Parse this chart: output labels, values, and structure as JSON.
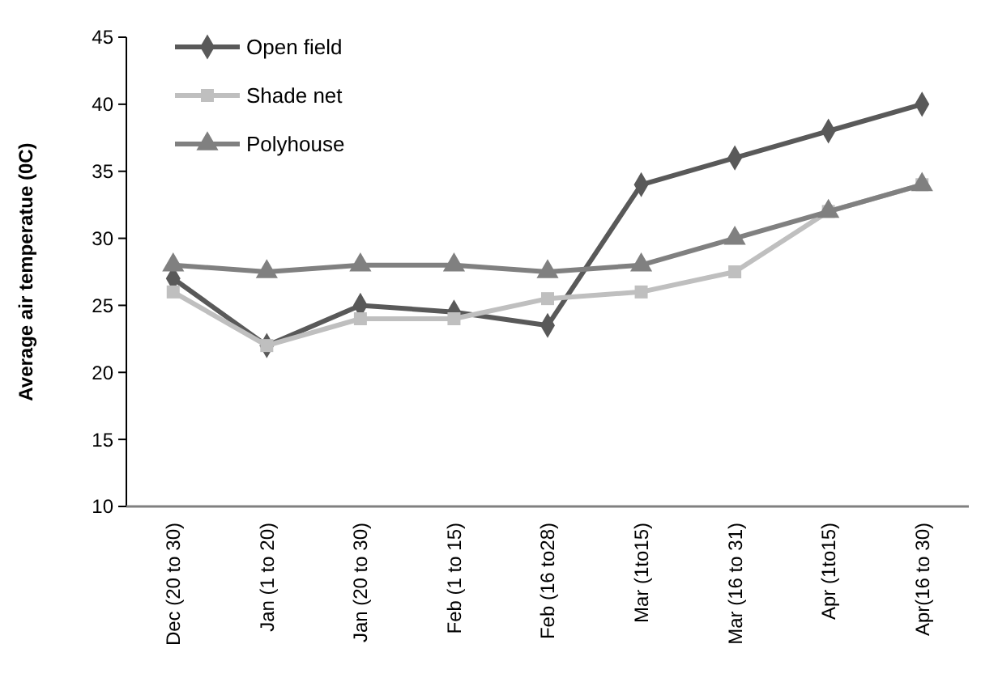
{
  "chart_data": {
    "type": "line",
    "ylabel": "Average air temperatue (0C)",
    "categories": [
      "Dec (20 to 30)",
      "Jan (1 to 20)",
      "Jan (20 to 30)",
      "Feb (1 to 15)",
      "Feb (16 to28)",
      "Mar (1to15)",
      "Mar (16 to 31)",
      "Apr (1to15)",
      "Apr(16 to 30)"
    ],
    "series": [
      {
        "name": "Open field",
        "color": "#595959",
        "marker": "diamond",
        "values": [
          27,
          22,
          25,
          24.5,
          23.5,
          34,
          36,
          38,
          40
        ]
      },
      {
        "name": "Shade net",
        "color": "#bfbfbf",
        "marker": "square",
        "values": [
          26,
          22,
          24,
          24,
          25.5,
          26,
          27.5,
          32,
          34
        ]
      },
      {
        "name": "Polyhouse",
        "color": "#808080",
        "marker": "triangle",
        "values": [
          28,
          27.5,
          28,
          28,
          27.5,
          28,
          30,
          32,
          34
        ]
      }
    ],
    "ylim": [
      10,
      45
    ],
    "yticks": [
      10,
      15,
      20,
      25,
      30,
      35,
      40,
      45
    ],
    "grid": false,
    "legend": "top left"
  }
}
